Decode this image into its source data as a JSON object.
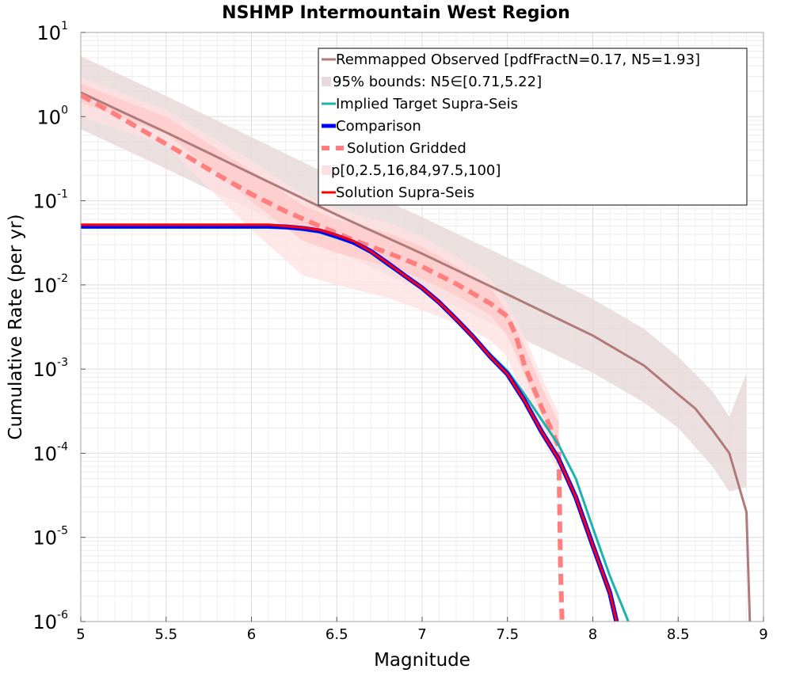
{
  "chart_data": {
    "type": "line",
    "title": "NSHMP Intermountain West Region",
    "xlabel": "Magnitude",
    "ylabel": "Cumulative Rate (per yr)",
    "xlim": [
      5,
      9
    ],
    "ylim": [
      1e-06,
      10
    ],
    "yscale": "log",
    "grid": true,
    "legend_position": "top-right",
    "xticks": [
      "5",
      "5.5",
      "6",
      "6.5",
      "7",
      "7.5",
      "8",
      "8.5",
      "9"
    ],
    "yticks": [
      {
        "base": "10",
        "exp": "1"
      },
      {
        "base": "10",
        "exp": "0"
      },
      {
        "base": "10",
        "exp": "-1"
      },
      {
        "base": "10",
        "exp": "-2"
      },
      {
        "base": "10",
        "exp": "-3"
      },
      {
        "base": "10",
        "exp": "-4"
      },
      {
        "base": "10",
        "exp": "-5"
      },
      {
        "base": "10",
        "exp": "-6"
      }
    ],
    "legend": [
      {
        "label": "Remmapped Observed [pdfFractN=0.17, N5=1.93]",
        "color": "#b07a7a",
        "style": "line"
      },
      {
        "label": "95% bounds: N5∈[0.71,5.22]",
        "color": "#e8d9da",
        "style": "band"
      },
      {
        "label": "Implied Target Supra-Seis",
        "color": "#1ab3ad",
        "style": "line"
      },
      {
        "label": "Comparison",
        "color": "#0000ff",
        "style": "thickline"
      },
      {
        "label": "Solution Gridded",
        "color": "#ff7f7f",
        "style": "dashed"
      },
      {
        "label": "p[0,2.5,16,84,97.5,100]",
        "color": "#ffe0e0",
        "style": "band"
      },
      {
        "label": "Solution Supra-Seis",
        "color": "#ff0000",
        "style": "line"
      }
    ],
    "series": [
      {
        "name": "Remmapped Observed [pdfFractN=0.17, N5=1.93]",
        "color": "#b07a7a",
        "x": [
          5.0,
          5.5,
          6.0,
          6.5,
          7.0,
          7.5,
          8.0,
          8.3,
          8.5,
          8.6,
          8.7,
          8.8,
          8.9,
          8.92
        ],
        "y": [
          1.93,
          0.65,
          0.21,
          0.068,
          0.0235,
          0.0077,
          0.0025,
          0.0011,
          0.0005,
          0.00034,
          0.00019,
          0.0001,
          2e-05,
          1e-06
        ]
      },
      {
        "name": "95% bounds: N5∈[0.71,5.22]",
        "color": "#e8d9da",
        "type": "band",
        "x": [
          5.0,
          5.5,
          6.0,
          6.5,
          7.0,
          7.5,
          8.0,
          8.3,
          8.5,
          8.7,
          8.8,
          8.9
        ],
        "lower": [
          0.71,
          0.24,
          0.078,
          0.025,
          0.0087,
          0.0028,
          0.0009,
          0.0004,
          0.0002,
          7e-05,
          3.5e-05,
          4e-05
        ],
        "upper": [
          5.22,
          1.76,
          0.57,
          0.184,
          0.064,
          0.021,
          0.0068,
          0.003,
          0.0014,
          0.00055,
          0.00027,
          0.0009
        ]
      },
      {
        "name": "Implied Target Supra-Seis",
        "color": "#1ab3ad",
        "x": [
          5.0,
          5.5,
          6.0,
          6.1,
          6.2,
          6.3,
          6.4,
          6.5,
          6.6,
          6.7,
          6.8,
          6.9,
          7.0,
          7.1,
          7.2,
          7.3,
          7.4,
          7.5,
          7.6,
          7.7,
          7.8,
          7.9,
          8.0,
          8.1,
          8.2,
          8.25
        ],
        "y": [
          0.048,
          0.048,
          0.048,
          0.048,
          0.047,
          0.045,
          0.042,
          0.036,
          0.031,
          0.024,
          0.017,
          0.0125,
          0.0092,
          0.0062,
          0.0039,
          0.0024,
          0.0015,
          0.00095,
          0.0005,
          0.00025,
          0.000125,
          5e-05,
          1.3e-05,
          3.5e-06,
          1.1e-06,
          6e-07
        ]
      },
      {
        "name": "Comparison",
        "color": "#0000ff",
        "x": [
          5.0,
          5.5,
          6.0,
          6.1,
          6.2,
          6.3,
          6.4,
          6.5,
          6.6,
          6.7,
          6.8,
          6.9,
          7.0,
          7.1,
          7.2,
          7.3,
          7.4,
          7.5,
          7.6,
          7.7,
          7.8,
          7.9,
          8.0,
          8.1,
          8.15
        ],
        "y": [
          0.05,
          0.05,
          0.05,
          0.05,
          0.049,
          0.047,
          0.044,
          0.038,
          0.032,
          0.025,
          0.018,
          0.0128,
          0.0092,
          0.0062,
          0.0039,
          0.0024,
          0.0014,
          0.00087,
          0.00042,
          0.00018,
          8.5e-05,
          3e-05,
          8e-06,
          2.2e-06,
          8e-07
        ]
      },
      {
        "name": "Solution Gridded",
        "color": "#ff7f7f",
        "x": [
          5.0,
          5.2,
          5.4,
          5.6,
          5.8,
          6.0,
          6.2,
          6.4,
          6.6,
          6.8,
          7.0,
          7.2,
          7.4,
          7.5,
          7.55,
          7.6,
          7.7,
          7.8,
          7.81,
          7.82
        ],
        "y": [
          1.8,
          1.07,
          0.62,
          0.36,
          0.205,
          0.12,
          0.075,
          0.05,
          0.034,
          0.024,
          0.0165,
          0.0103,
          0.006,
          0.0042,
          0.0025,
          0.0011,
          0.00035,
          0.00012,
          5e-06,
          1e-06
        ]
      },
      {
        "name": "p[0,2.5,16,84,97.5,100]",
        "color": "#ffe0e0",
        "type": "band",
        "x": [
          5.0,
          5.5,
          6.0,
          6.3,
          6.5,
          6.8,
          7.0,
          7.2,
          7.4,
          7.5,
          7.6,
          7.7,
          7.8
        ],
        "lower": [
          1.0,
          0.45,
          0.045,
          0.013,
          0.01,
          0.007,
          0.005,
          0.0035,
          0.0022,
          0.0014,
          0.0004,
          0.00015,
          6e-05
        ],
        "upper": [
          3.0,
          1.2,
          0.3,
          0.12,
          0.08,
          0.055,
          0.038,
          0.022,
          0.012,
          0.006,
          0.0025,
          0.0008,
          0.0003
        ]
      },
      {
        "name": "Solution Supra-Seis",
        "color": "#ff0000",
        "x": [
          5.0,
          5.5,
          6.0,
          6.1,
          6.2,
          6.3,
          6.4,
          6.5,
          6.6,
          6.7,
          6.8,
          6.9,
          7.0,
          7.1,
          7.2,
          7.3,
          7.4,
          7.5,
          7.6,
          7.7,
          7.8,
          7.9,
          8.0,
          8.1,
          8.15
        ],
        "y": [
          0.052,
          0.052,
          0.052,
          0.052,
          0.05,
          0.048,
          0.045,
          0.039,
          0.033,
          0.025,
          0.018,
          0.0128,
          0.0092,
          0.0062,
          0.0039,
          0.0024,
          0.0014,
          0.00087,
          0.00042,
          0.00018,
          8.5e-05,
          3e-05,
          8e-06,
          2.2e-06,
          8e-07
        ]
      }
    ]
  }
}
